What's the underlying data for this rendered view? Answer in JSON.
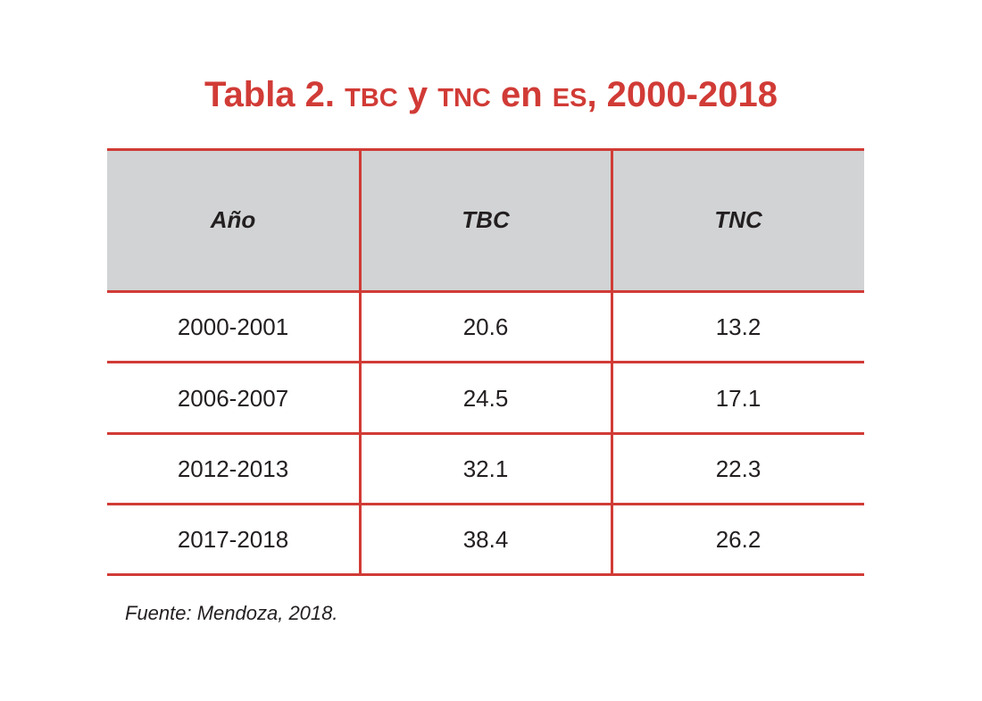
{
  "title": {
    "prefix": "Tabla 2. ",
    "abbr1": "TBC",
    "mid1": " y ",
    "abbr2": "TNC",
    "mid2": " en ",
    "abbr3": "ES",
    "suffix": ", 2000-2018"
  },
  "table": {
    "headers": [
      "Año",
      "TBC",
      "TNC"
    ],
    "rows": [
      [
        "2000-2001",
        "20.6",
        "13.2"
      ],
      [
        "2006-2007",
        "24.5",
        "17.1"
      ],
      [
        "2012-2013",
        "32.1",
        "22.3"
      ],
      [
        "2017-2018",
        "38.4",
        "26.2"
      ]
    ]
  },
  "source": "Fuente: Mendoza, 2018.",
  "colors": {
    "accent": "#d13b36",
    "header_bg": "#d1d3d4",
    "text": "#231f20"
  }
}
